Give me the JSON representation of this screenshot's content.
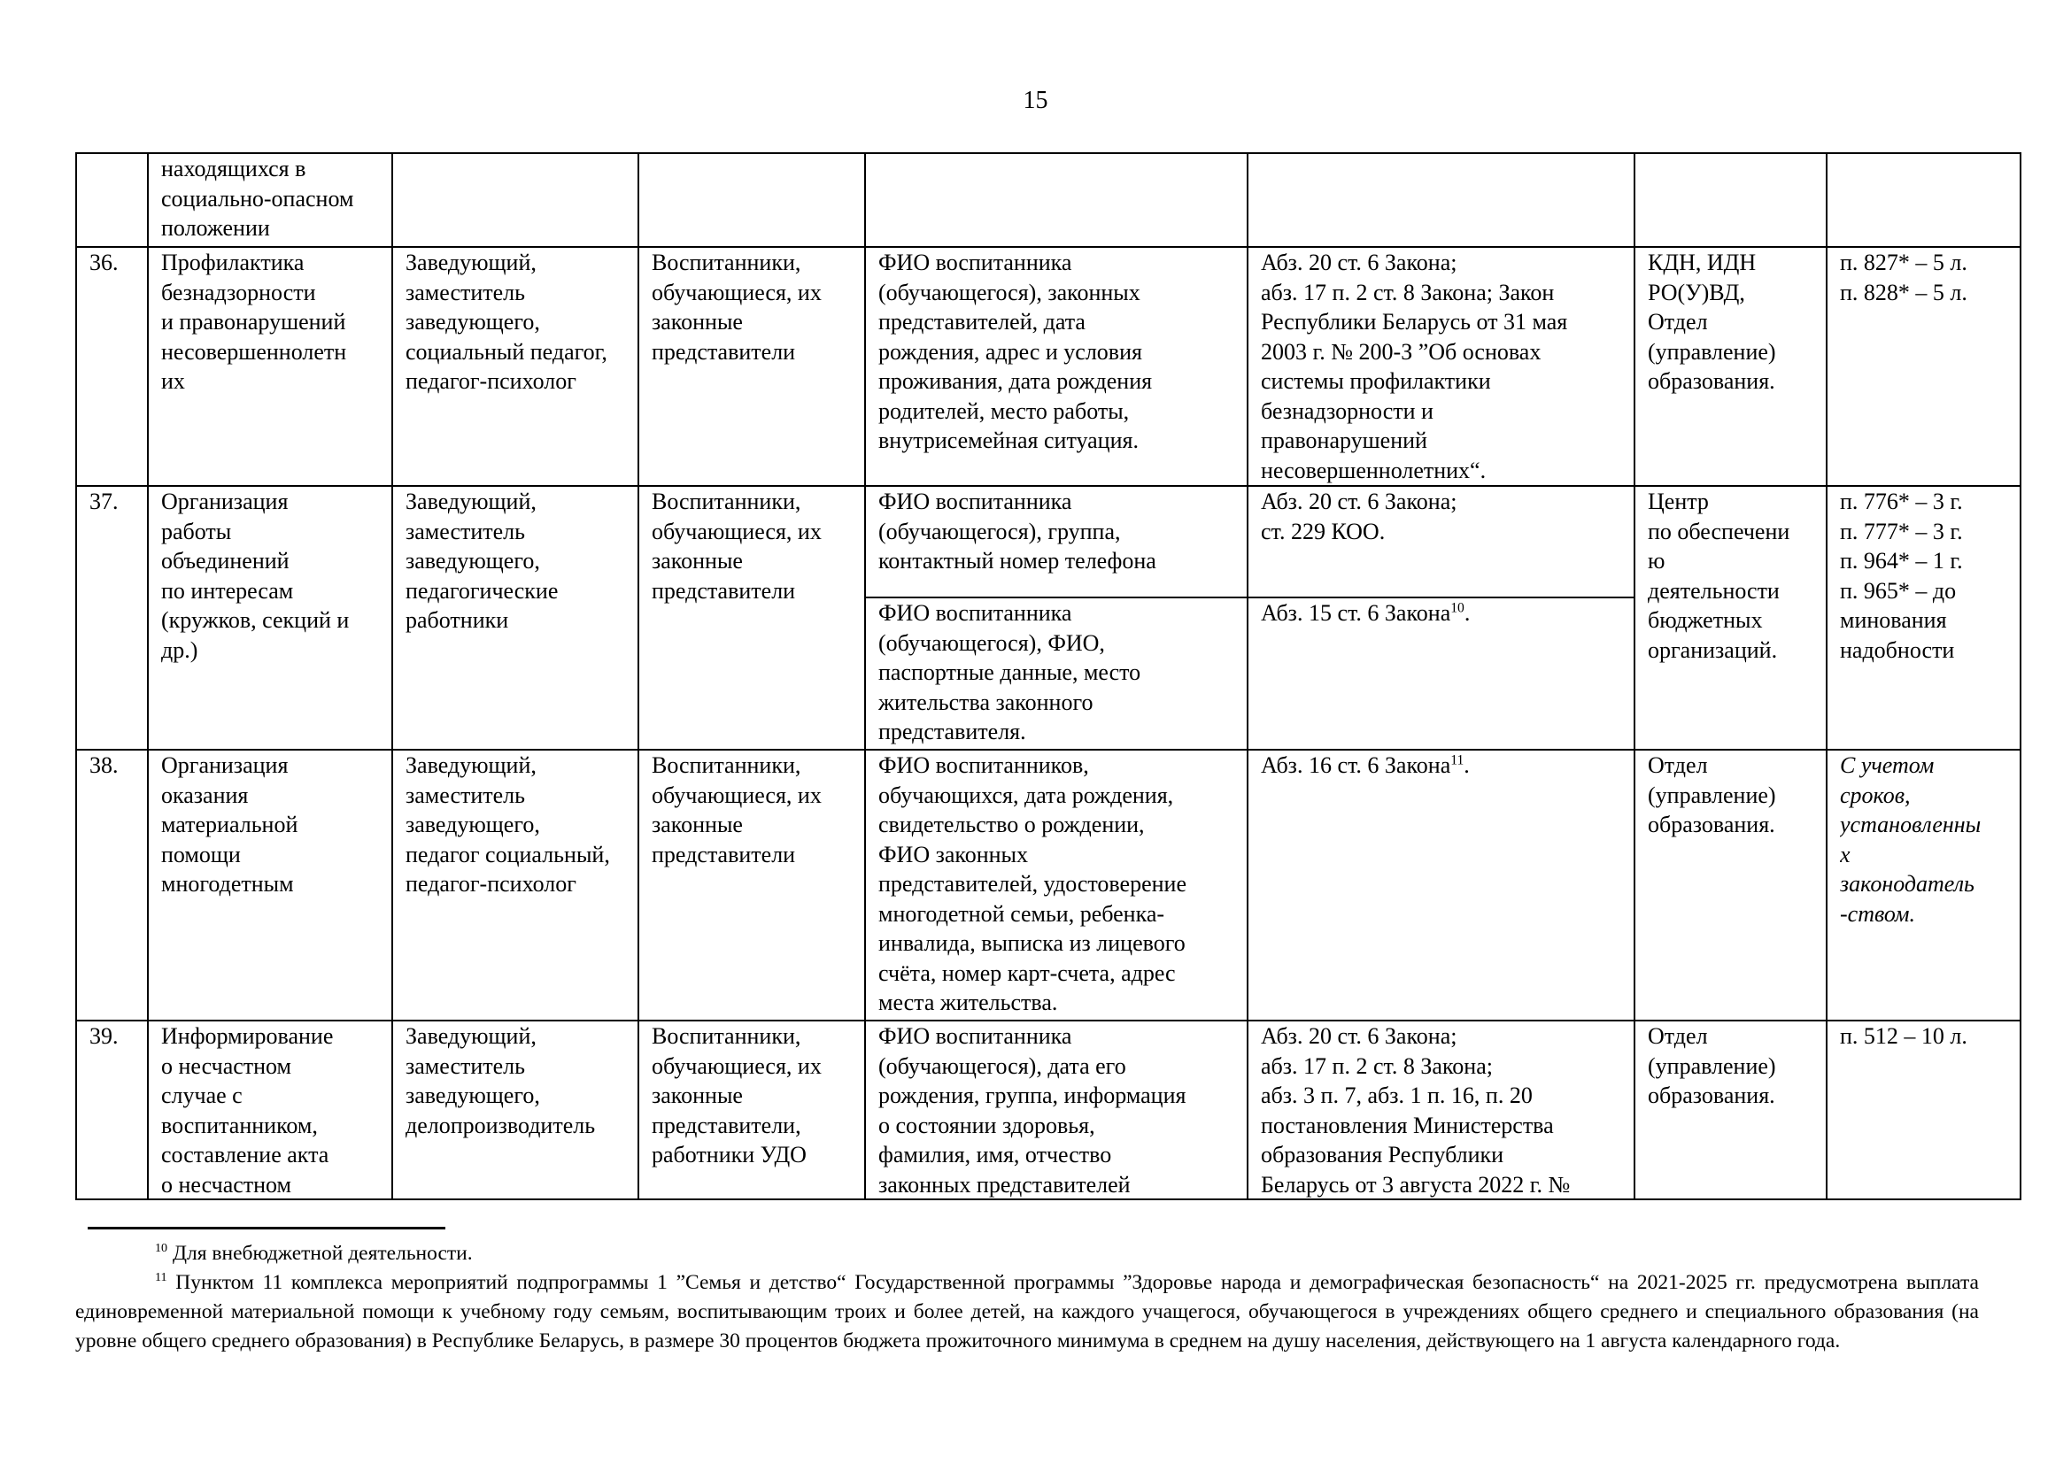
{
  "page_number": "15",
  "table": {
    "continued_row": {
      "process": "находящихся в\nсоциально-опасном\nположении"
    },
    "rows": [
      {
        "num": "36.",
        "process": "Профилактика\nбезнадзорности\nи правонарушений\nнесовершеннолетн\nих",
        "responsible": "Заведующий,\nзаместитель\nзаведующего,\nсоциальный педагог,\nпедагог-психолог",
        "subjects": "Воспитанники,\nобучающиеся, их\nзаконные\nпредставители",
        "data": "ФИО воспитанника\n(обучающегося), законных\nпредставителей, дата\nрождения, адрес и условия\nпроживания, дата рождения\nродителей, место работы,\nвнутрисемейная ситуация.",
        "basis": "Абз. 20 ст. 6 Закона;\nабз. 17 п. 2 ст. 8 Закона; Закон\nРеспублики Беларусь от 31 мая\n2003 г. № 200-З ”Об основах\nсистемы профилактики\nбезнадзорности и\nправонарушений\nнесовершеннолетних“.",
        "recipients": "КДН, ИДН\nРО(У)ВД,\nОтдел\n(управление)\nобразования.",
        "retention": "п. 827* – 5 л.\nп. 828* – 5 л."
      },
      {
        "num": "37.",
        "process": "Организация\nработы\nобъединений\nпо интересам\n(кружков, секций и\nдр.)",
        "responsible": "Заведующий,\nзаместитель\nзаведующего,\nпедагогические\nработники",
        "subjects": "Воспитанники,\nобучающиеся, их\nзаконные\nпредставители",
        "data_a": "ФИО воспитанника\n(обучающегося), группа,\nконтактный номер телефона",
        "basis_a": "Абз. 20 ст. 6 Закона;\nст. 229 КОО.",
        "data_b": "ФИО воспитанника\n(обучающегося), ФИО,\nпаспортные данные, место\nжительства законного\nпредставителя.",
        "basis_b": "Абз. 15 ст. 6 Закона",
        "basis_b_sup": "10",
        "basis_b_end": ".",
        "recipients": "Центр\nпо обеспечени\nю\nдеятельности\nбюджетных\nорганизаций.",
        "retention": "п. 776* – 3 г.\nп. 777* – 3 г.\nп. 964* – 1 г.\nп. 965* – до\nминования\nнадобности"
      },
      {
        "num": "38.",
        "process": "Организация\nоказания\nматериальной\nпомощи\nмногодетным",
        "responsible": "Заведующий,\nзаместитель\nзаведующего,\nпедагог социальный,\nпедагог-психолог",
        "subjects": "Воспитанники,\nобучающиеся, их\nзаконные\nпредставители",
        "data": "ФИО воспитанников,\nобучающихся, дата рождения,\nсвидетельство о рождении,\nФИО законных\nпредставителей, удостоверение\nмногодетной семьи, ребенка-\nинвалида, выписка из лицевого\nсчёта, номер карт-счета, адрес\nместа жительства.",
        "basis": "Абз. 16 ст. 6 Закона",
        "basis_sup": "11",
        "basis_end": ".",
        "recipients": "Отдел\n(управление)\nобразования.",
        "retention": "С учетом\nсроков,\nустановленны\nх\nзаконодатель\n-ством."
      },
      {
        "num": "39.",
        "process": "Информирование\nо несчастном\nслучае с\nвоспитанником,\nсоставление акта\nо несчастном",
        "responsible": "Заведующий,\nзаместитель\nзаведующего,\nделопроизводитель",
        "subjects": "Воспитанники,\nобучающиеся, их\nзаконные\nпредставители,\nработники УДО",
        "data": "ФИО воспитанника\n(обучающегося), дата его\nрождения, группа, информация\nо состоянии здоровья,\nфамилия, имя, отчество\nзаконных представителей",
        "basis": "Абз. 20 ст. 6 Закона;\nабз. 17 п. 2 ст. 8 Закона;\nабз. 3 п. 7, абз. 1 п. 16, п. 20\nпостановления Министерства\nобразования Республики\nБеларусь от 3 августа 2022 г. №",
        "recipients": "Отдел\n(управление)\nобразования.",
        "retention": "п. 512 – 10 л."
      }
    ]
  },
  "footnotes": [
    {
      "mark": "10",
      "text": "Для внебюджетной деятельности."
    },
    {
      "mark": "11",
      "text": "Пунктом 11 комплекса мероприятий подпрограммы 1 ”Семья и детство“ Государственной программы ”Здоровье народа и демографическая безопасность“ на 2021-2025 гг. предусмотрена выплата единовременной материальной помощи к учебному году семьям, воспитывающим троих и более детей, на каждого учащегося, обучающегося в учреждениях общего среднего и специального образования (на уровне общего среднего образования) в Республике Беларусь, в размере 30 процентов бюджета прожиточного минимума в среднем на душу населения, действующего на 1 августа календарного года."
    }
  ]
}
